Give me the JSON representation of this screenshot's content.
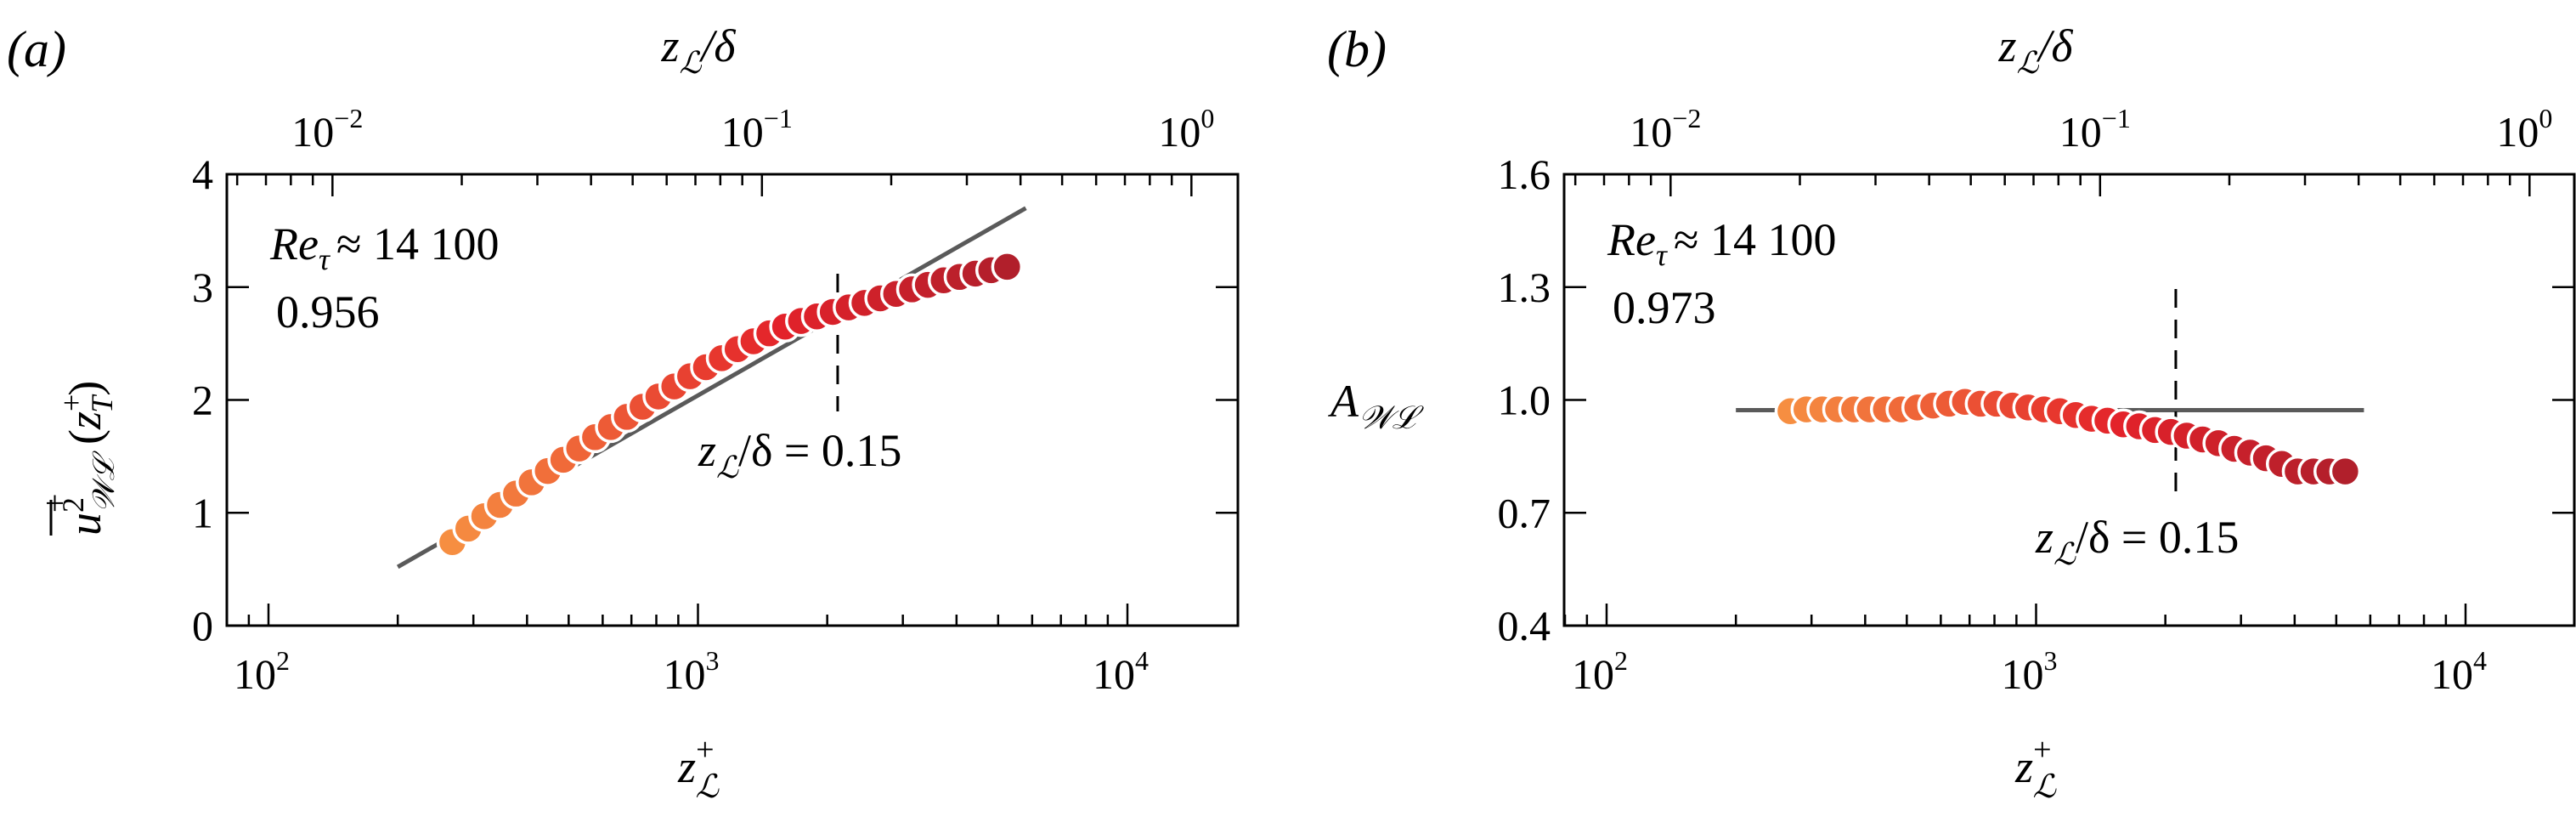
{
  "figure": {
    "panels": [
      {
        "id": "a",
        "panel_label": "(a)",
        "top_axis_label": "z_L/δ",
        "top_axis_label_main": "z",
        "top_axis_label_sub": "ℒ",
        "top_axis_label_rest": "/δ",
        "bottom_axis_label_main": "z",
        "bottom_axis_label_sup": "+",
        "bottom_axis_label_sub": "ℒ",
        "y_axis_label": "u²_WL⁺(z_T⁺)",
        "annotation_re": "Re",
        "annotation_re_sub": "τ",
        "annotation_re_value": "≈ 14 100",
        "annotation_value": "0.956",
        "dashed_label": "z_L/δ = 0.15",
        "dashed_label_main": "z",
        "dashed_label_sub": "ℒ",
        "dashed_label_rest": "/δ = 0.15",
        "y_ticks": [
          "0",
          "1",
          "2",
          "3",
          "4"
        ],
        "x_ticks": [
          {
            "base": "10",
            "exp": "2"
          },
          {
            "base": "10",
            "exp": "3"
          },
          {
            "base": "10",
            "exp": "4"
          }
        ],
        "top_ticks": [
          {
            "base": "10",
            "exp": "−2"
          },
          {
            "base": "10",
            "exp": "−1"
          },
          {
            "base": "10",
            "exp": "0"
          }
        ]
      },
      {
        "id": "b",
        "panel_label": "(b)",
        "top_axis_label": "z_L/δ",
        "top_axis_label_main": "z",
        "top_axis_label_sub": "ℒ",
        "top_axis_label_rest": "/δ",
        "bottom_axis_label_main": "z",
        "bottom_axis_label_sup": "+",
        "bottom_axis_label_sub": "ℒ",
        "y_axis_label_main": "A",
        "y_axis_label_sub": "𝒲ℒ",
        "annotation_re": "Re",
        "annotation_re_sub": "τ",
        "annotation_re_value": "≈ 14 100",
        "annotation_value": "0.973",
        "dashed_label_main": "z",
        "dashed_label_sub": "ℒ",
        "dashed_label_rest": "/δ = 0.15",
        "y_ticks": [
          "0.4",
          "0.7",
          "1.0",
          "1.3",
          "1.6"
        ],
        "x_ticks": [
          {
            "base": "10",
            "exp": "2"
          },
          {
            "base": "10",
            "exp": "3"
          },
          {
            "base": "10",
            "exp": "4"
          }
        ],
        "top_ticks": [
          {
            "base": "10",
            "exp": "−2"
          },
          {
            "base": "10",
            "exp": "−1"
          },
          {
            "base": "10",
            "exp": "0"
          }
        ]
      }
    ]
  },
  "chart_data": [
    {
      "type": "scatter",
      "title": "(a)",
      "xlabel": "z_L^+",
      "ylabel": "u^2_WL^+ (z_T^+)",
      "top_xlabel": "z_L/δ",
      "xscale": "log",
      "xlim": [
        80,
        18000
      ],
      "ylim": [
        0,
        4
      ],
      "annotations": [
        "Re_τ ≈ 14 100",
        "0.956",
        "z_L/δ = 0.15"
      ],
      "reference_line_x": 2115,
      "fit_line": {
        "x": [
          200,
          5800
        ],
        "y": [
          0.52,
          3.7
        ],
        "segments_hidden_under_markers": true
      },
      "x": [
        268,
        292,
        318,
        346,
        377,
        410,
        447,
        486,
        529,
        576,
        627,
        683,
        743,
        809,
        881,
        959,
        1044,
        1136,
        1237,
        1347,
        1466,
        1596,
        1738,
        1892,
        2060,
        2243,
        2442,
        2658,
        2894,
        3151,
        3430,
        3734,
        4066,
        4426,
        4819,
        5246
      ],
      "y": [
        0.74,
        0.86,
        0.97,
        1.07,
        1.17,
        1.27,
        1.37,
        1.47,
        1.57,
        1.67,
        1.76,
        1.85,
        1.94,
        2.03,
        2.12,
        2.21,
        2.29,
        2.37,
        2.45,
        2.52,
        2.59,
        2.65,
        2.7,
        2.74,
        2.78,
        2.82,
        2.86,
        2.9,
        2.94,
        2.98,
        3.02,
        3.06,
        3.09,
        3.12,
        3.15,
        3.18
      ]
    },
    {
      "type": "scatter",
      "title": "(b)",
      "xlabel": "z_L^+",
      "ylabel": "A_WL",
      "top_xlabel": "z_L/δ",
      "xscale": "log",
      "xlim": [
        80,
        18000
      ],
      "ylim": [
        0.4,
        1.6
      ],
      "annotations": [
        "Re_τ ≈ 14 100",
        "0.973",
        "z_L/δ = 0.15"
      ],
      "reference_line_x": 2115,
      "fit_line": {
        "x": [
          200,
          5800
        ],
        "y": [
          0.973,
          0.973
        ]
      },
      "x": [
        268,
        292,
        318,
        346,
        377,
        410,
        447,
        486,
        529,
        576,
        627,
        683,
        743,
        809,
        881,
        959,
        1044,
        1136,
        1237,
        1347,
        1466,
        1596,
        1738,
        1892,
        2060,
        2243,
        2442,
        2658,
        2894,
        3151,
        3430,
        3734,
        4066,
        4426,
        4819,
        5246
      ],
      "y": [
        0.97,
        0.975,
        0.975,
        0.975,
        0.975,
        0.975,
        0.975,
        0.975,
        0.98,
        0.985,
        0.99,
        0.995,
        0.99,
        0.99,
        0.985,
        0.98,
        0.975,
        0.97,
        0.96,
        0.95,
        0.945,
        0.935,
        0.93,
        0.92,
        0.915,
        0.905,
        0.895,
        0.885,
        0.87,
        0.86,
        0.845,
        0.83,
        0.81,
        0.81,
        0.81,
        0.81
      ]
    }
  ],
  "colors": {
    "marker_start": "#f68e41",
    "marker_mid": "#e3222a",
    "marker_end": "#b11f2b",
    "marker_edge": "#ffffff",
    "fit_line": "#5a5a5a",
    "axis": "#000000"
  }
}
